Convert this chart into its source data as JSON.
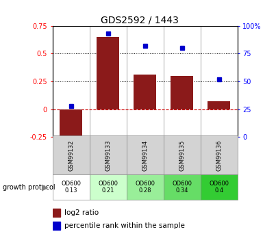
{
  "title": "GDS2592 / 1443",
  "samples": [
    "GSM99132",
    "GSM99133",
    "GSM99134",
    "GSM99135",
    "GSM99136"
  ],
  "log2_ratio": [
    -0.28,
    0.65,
    0.31,
    0.3,
    0.07
  ],
  "percentile_rank": [
    28,
    93,
    82,
    80,
    52
  ],
  "bar_color": "#8B1A1A",
  "dot_color": "#0000CC",
  "ylim_left": [
    -0.25,
    0.75
  ],
  "ylim_right": [
    0,
    100
  ],
  "yticks_left": [
    -0.25,
    0,
    0.25,
    0.5,
    0.75
  ],
  "yticks_right": [
    0,
    25,
    50,
    75,
    100
  ],
  "ytick_labels_left": [
    "-0.25",
    "0",
    "0.25",
    "0.5",
    "0.75"
  ],
  "ytick_labels_right": [
    "0",
    "25",
    "50",
    "75",
    "100%"
  ],
  "hlines": [
    0.25,
    0.5
  ],
  "hline_zero_color": "#CC0000",
  "hline_dotted_color": "#000000",
  "growth_protocol_label": "growth protocol",
  "od_values": [
    "OD600\n0.13",
    "OD600\n0.21",
    "OD600\n0.28",
    "OD600\n0.34",
    "OD600\n0.4"
  ],
  "od_colors": [
    "#ffffff",
    "#ccffcc",
    "#99ee99",
    "#66dd66",
    "#33cc33"
  ],
  "bar_width": 0.6,
  "legend_bar_label": "log2 ratio",
  "legend_dot_label": "percentile rank within the sample"
}
